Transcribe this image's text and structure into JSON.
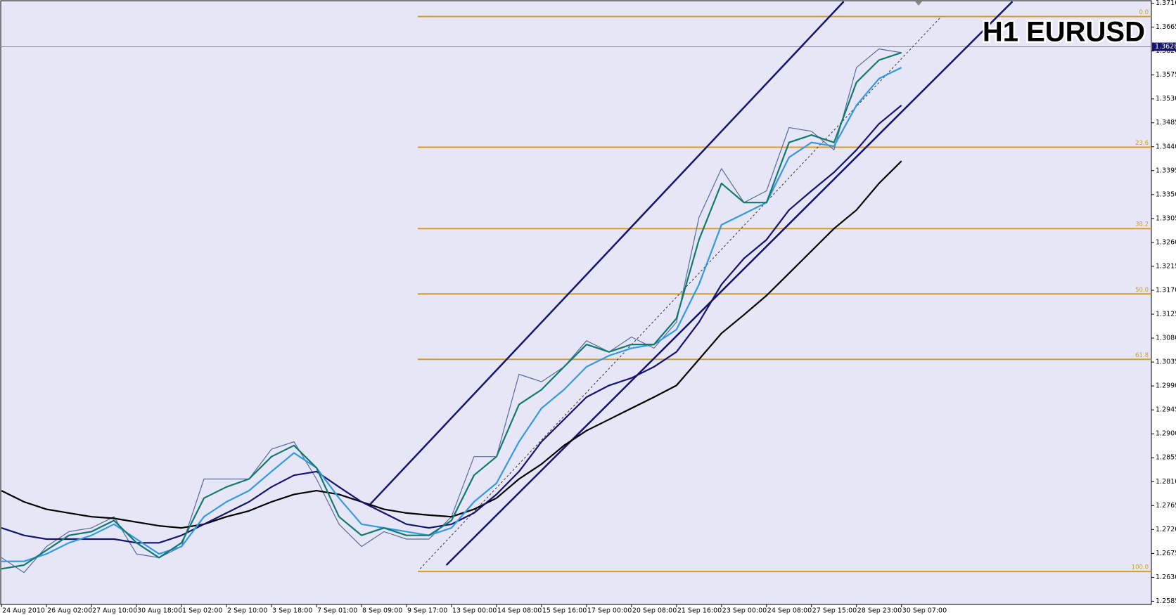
{
  "chart_data": {
    "type": "line",
    "title": "H1 EURUSD",
    "categories": [
      "24 Aug 2010",
      null,
      "26 Aug 02:00",
      null,
      "27 Aug 10:00",
      null,
      "30 Aug 18:00",
      null,
      "1 Sep 02:00",
      null,
      "2 Sep 10:00",
      null,
      "3 Sep 18:00",
      null,
      "7 Sep 01:00",
      null,
      "8 Sep 09:00",
      null,
      "9 Sep 17:00",
      null,
      "13 Sep 00:00",
      null,
      "14 Sep 08:00",
      null,
      "15 Sep 16:00",
      null,
      "17 Sep 00:00",
      null,
      "20 Sep 08:00",
      null,
      "21 Sep 16:00",
      null,
      "23 Sep 00:00",
      null,
      "24 Sep 08:00",
      null,
      "27 Sep 15:00",
      null,
      "28 Sep 23:00",
      null,
      "30 Sep 07:00"
    ],
    "series": [
      {
        "color": "#5a6a9a",
        "values": [
          1.2667,
          1.2639,
          1.2688,
          1.2716,
          1.2723,
          1.2744,
          1.2674,
          1.2667,
          1.2688,
          1.2815,
          1.2815,
          1.2815,
          1.2871,
          1.2885,
          1.2815,
          1.273,
          1.2688,
          1.2716,
          1.2702,
          1.2702,
          1.2744,
          1.2857,
          1.2857,
          1.3012,
          1.2998,
          1.3026,
          1.3075,
          1.3054,
          1.3082,
          1.3061,
          1.311,
          1.3307,
          1.3399,
          1.3335,
          1.3357,
          1.3476,
          1.3469,
          1.3434,
          1.3589,
          1.3624,
          1.3617
        ]
      },
      {
        "color": "#000000",
        "values": [
          1.2793,
          1.2772,
          1.2758,
          1.2751,
          1.2744,
          1.2741,
          1.2734,
          1.2727,
          1.2723,
          1.273,
          1.2744,
          1.2755,
          1.2772,
          1.2786,
          1.2793,
          1.2786,
          1.2772,
          1.2758,
          1.2751,
          1.2747,
          1.2744,
          1.2758,
          1.2779,
          1.2815,
          1.2843,
          1.2878,
          1.2906,
          1.2927,
          1.2948,
          1.2969,
          1.2991,
          1.304,
          1.3089,
          1.3124,
          1.316,
          1.3202,
          1.3244,
          1.3286,
          1.3321,
          1.3371,
          1.3413
        ]
      },
      {
        "color": "#14146e",
        "values": [
          1.2723,
          1.2709,
          1.2702,
          1.2702,
          1.2702,
          1.2702,
          1.2695,
          1.2695,
          1.2709,
          1.273,
          1.2751,
          1.2772,
          1.28,
          1.2822,
          1.2829,
          1.28,
          1.2772,
          1.2751,
          1.273,
          1.2723,
          1.273,
          1.2751,
          1.2786,
          1.2829,
          1.2885,
          1.2927,
          1.2969,
          1.2991,
          1.3005,
          1.3026,
          1.3054,
          1.311,
          1.3181,
          1.323,
          1.3265,
          1.3321,
          1.3357,
          1.3392,
          1.3434,
          1.3483,
          1.3518
        ]
      },
      {
        "color": "#3399e0",
        "values": [
          1.266,
          1.266,
          1.2674,
          1.2695,
          1.2709,
          1.273,
          1.2702,
          1.2674,
          1.2688,
          1.2744,
          1.2772,
          1.2793,
          1.2829,
          1.2864,
          1.2836,
          1.2779,
          1.273,
          1.2723,
          1.2716,
          1.2709,
          1.2723,
          1.2772,
          1.2807,
          1.2885,
          1.2948,
          1.2983,
          1.3026,
          1.3047,
          1.3061,
          1.3068,
          1.3096,
          1.3181,
          1.3293,
          1.3314,
          1.3335,
          1.342,
          1.3448,
          1.3441,
          1.3518,
          1.3568,
          1.3589
        ]
      },
      {
        "color": "#117a6e",
        "values": [
          1.2646,
          1.2653,
          1.2681,
          1.2709,
          1.2716,
          1.2737,
          1.2695,
          1.2667,
          1.2695,
          1.2779,
          1.28,
          1.2815,
          1.2857,
          1.2878,
          1.2836,
          1.2744,
          1.2709,
          1.2723,
          1.2709,
          1.2709,
          1.2737,
          1.2822,
          1.2857,
          1.2955,
          1.2983,
          1.3026,
          1.3068,
          1.3054,
          1.3068,
          1.3068,
          1.3117,
          1.3265,
          1.3371,
          1.3335,
          1.3335,
          1.3448,
          1.3462,
          1.3448,
          1.3561,
          1.3603,
          1.3617
        ]
      }
    ],
    "ylim": [
      1.2579,
      1.3716
    ],
    "yticks": [
      {
        "value": 1.371,
        "label": "1.3710"
      },
      1.3665,
      {
        "value": 1.362,
        "label": "1.3620"
      },
      1.3575,
      {
        "value": 1.353,
        "label": "1.3530"
      },
      1.3485,
      {
        "value": 1.344,
        "label": "1.3440"
      },
      1.3395,
      {
        "value": 1.335,
        "label": "1.3350"
      },
      1.3305,
      {
        "value": 1.326,
        "label": "1.3260"
      },
      1.3215,
      {
        "value": 1.317,
        "label": "1.3170"
      },
      1.3125,
      {
        "value": 1.308,
        "label": "1.3080"
      },
      1.3035,
      {
        "value": 1.299,
        "label": "1.2990"
      },
      1.2945,
      {
        "value": 1.29,
        "label": "1.2900"
      },
      1.2855,
      {
        "value": 1.281,
        "label": "1.2810"
      },
      1.2765,
      {
        "value": 1.272,
        "label": "1.2720"
      },
      1.2675,
      {
        "value": 1.263,
        "label": "1.2630"
      },
      1.2585
    ],
    "grid": false,
    "current_price": 1.3628,
    "fib_color": "#d4a020",
    "fib_x_start": 18.5,
    "fib_levels": [
      {
        "label": "0.0",
        "price": 1.3685
      },
      {
        "label": "23.6",
        "price": 1.3439
      },
      {
        "label": "38.2",
        "price": 1.3286
      },
      {
        "label": "50.0",
        "price": 1.3163
      },
      {
        "label": "61.8",
        "price": 1.304
      },
      {
        "label": "100.0",
        "price": 1.2641
      }
    ],
    "trendlines": [
      {
        "color": "#14146e",
        "x": [
          16.33,
          37.43
        ],
        "values": [
          1.2765,
          1.3713
        ]
      },
      {
        "color": "#14146e",
        "x": [
          19.77,
          44.93
        ],
        "values": [
          1.2653,
          1.3713
        ]
      },
      {
        "color": "#333333",
        "dashed": true,
        "x": [
          18.6,
          41.77
        ],
        "values": [
          1.2646,
          1.3685
        ]
      }
    ]
  }
}
